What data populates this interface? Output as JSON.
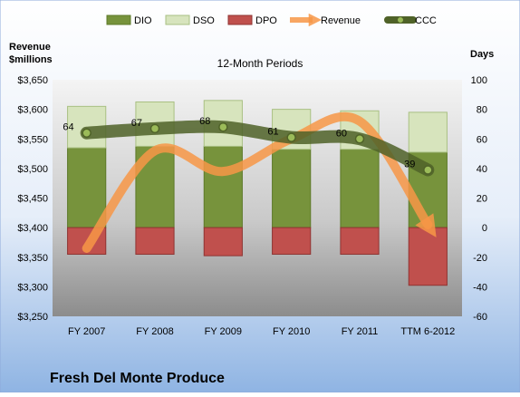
{
  "chart_data": {
    "type": "bar",
    "title": "12-Month Periods",
    "company": "Fresh Del Monte Produce",
    "left_axis_label": [
      "Revenue",
      "$millions"
    ],
    "right_axis_label": "Days",
    "categories": [
      "FY 2007",
      "FY 2008",
      "FY 2009",
      "FY 2010",
      "FY 2011",
      "TTM 6-2012"
    ],
    "left_axis": {
      "min": 3250,
      "max": 3650,
      "step": 50,
      "prefix": "$"
    },
    "right_axis": {
      "min": -60,
      "max": 100,
      "step": 20
    },
    "legend": [
      "DIO",
      "DSO",
      "DPO",
      "Revenue",
      "CCC"
    ],
    "legend_position": "top",
    "grid": false,
    "series": [
      {
        "name": "DIO",
        "axis": "right",
        "values": [
          54,
          55,
          55,
          53,
          53,
          51
        ],
        "color": "#77933c"
      },
      {
        "name": "DSO",
        "axis": "right",
        "values": [
          28,
          30,
          31,
          27,
          26,
          27
        ],
        "color": "#d7e4bd"
      },
      {
        "name": "DPO",
        "axis": "right",
        "values": [
          -18,
          -18,
          -19,
          -18,
          -18,
          -39
        ],
        "color": "#c0504d"
      },
      {
        "name": "Revenue",
        "axis": "left",
        "values": [
          3365,
          3530,
          3495,
          3550,
          3580,
          3405
        ],
        "color": "#f79646"
      },
      {
        "name": "CCC",
        "axis": "right",
        "values": [
          64,
          67,
          68,
          61,
          60,
          39
        ],
        "color": "#4f6228"
      }
    ],
    "ccc_labels": [
      "64",
      "67",
      "68",
      "61",
      "60",
      "39"
    ]
  }
}
